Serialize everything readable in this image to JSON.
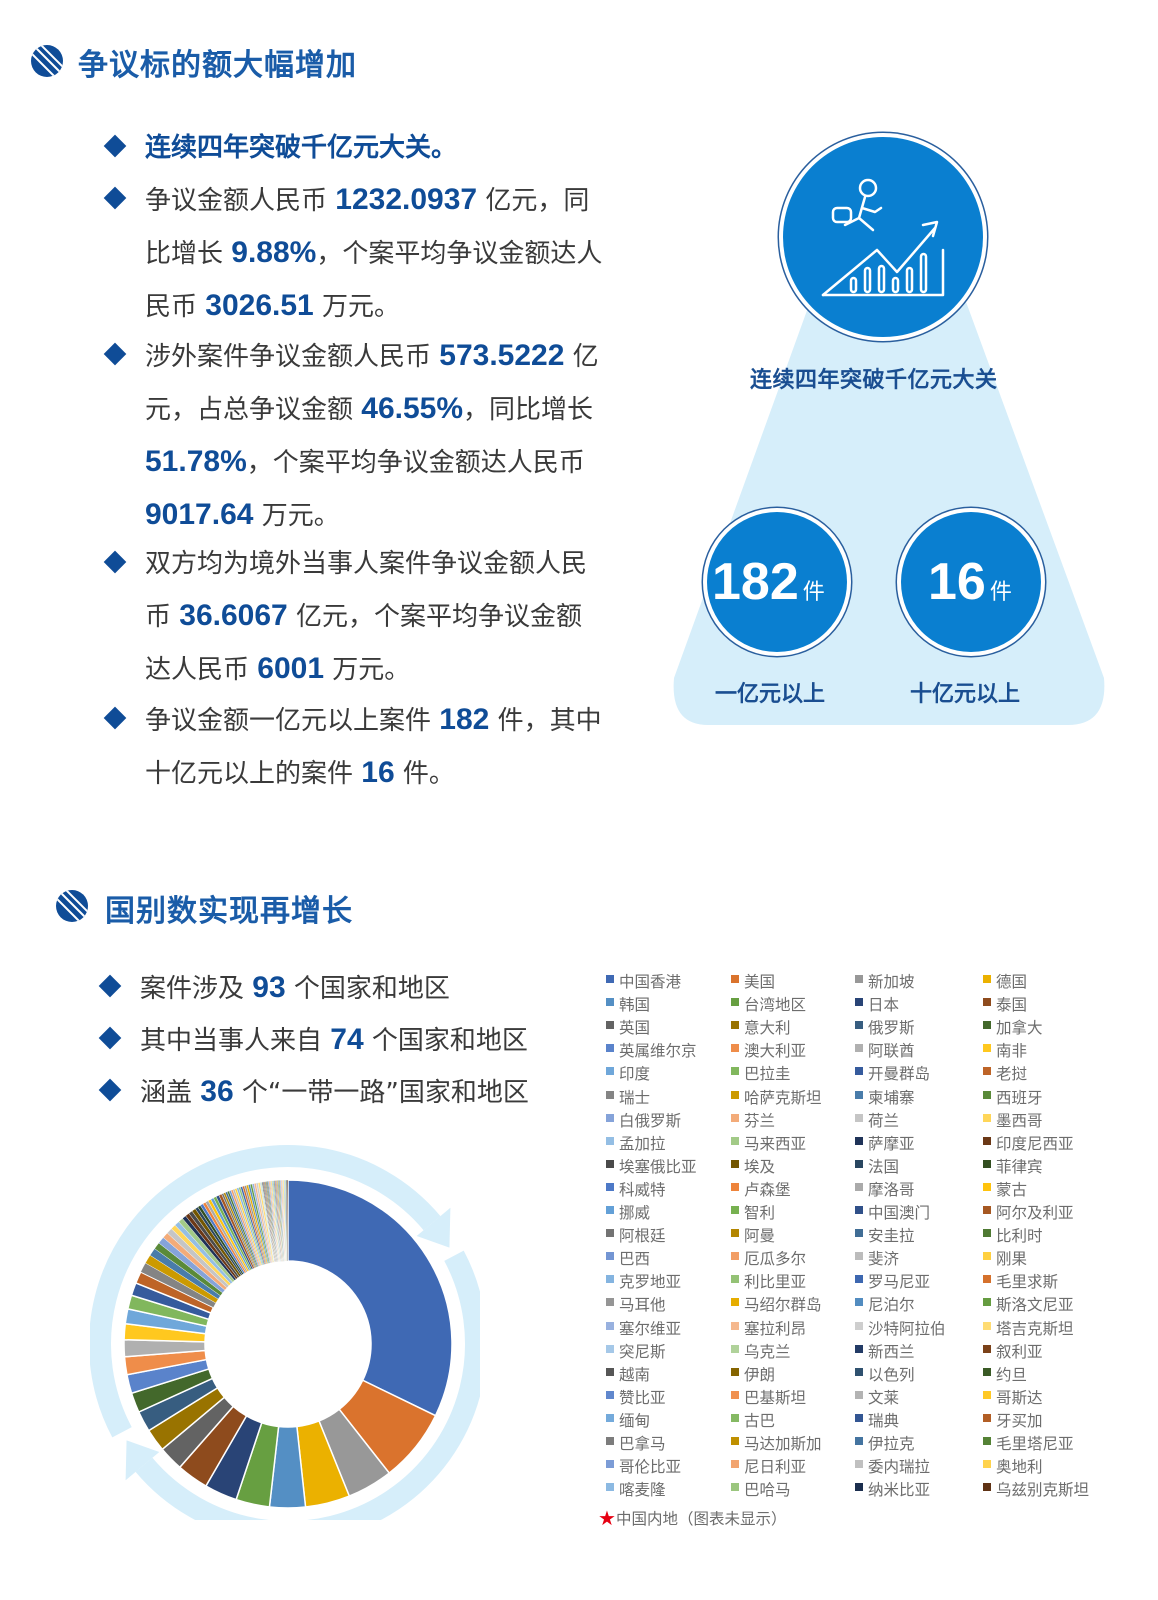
{
  "section1": {
    "title": "争议标的额大幅增加",
    "bullets": [
      {
        "highlight": true,
        "segments": [
          {
            "t": "连续四年突破千亿元大关。",
            "b": false
          }
        ]
      },
      {
        "segments": [
          {
            "t": "争议金额人民币 ",
            "b": false
          },
          {
            "t": "1232.0937",
            "b": true
          },
          {
            "t": " 亿元，同比增长 ",
            "b": false
          },
          {
            "t": "9.88%",
            "b": true
          },
          {
            "t": "，个案平均争议金额达人民币 ",
            "b": false
          },
          {
            "t": "3026.51",
            "b": true
          },
          {
            "t": " 万元。",
            "b": false
          }
        ]
      },
      {
        "segments": [
          {
            "t": "涉外案件争议金额人民币 ",
            "b": false
          },
          {
            "t": "573.5222",
            "b": true
          },
          {
            "t": " 亿元，占总争议金额 ",
            "b": false
          },
          {
            "t": "46.55%",
            "b": true
          },
          {
            "t": "，同比增长 ",
            "b": false
          },
          {
            "t": "51.78%",
            "b": true
          },
          {
            "t": "，个案平均争议金额达人民币 ",
            "b": false
          },
          {
            "t": "9017.64",
            "b": true
          },
          {
            "t": " 万元。",
            "b": false
          }
        ]
      },
      {
        "segments": [
          {
            "t": "双方均为境外当事人案件争议金额人民币 ",
            "b": false
          },
          {
            "t": "36.6067",
            "b": true
          },
          {
            "t": " 亿元，个案平均争议金额达人民币 ",
            "b": false
          },
          {
            "t": "6001",
            "b": true
          },
          {
            "t": " 万元。",
            "b": false
          }
        ]
      },
      {
        "segments": [
          {
            "t": "争议金额一亿元以上案件 ",
            "b": false
          },
          {
            "t": "182",
            "b": true
          },
          {
            "t": " 件，其中十亿元以上的案件 ",
            "b": false
          },
          {
            "t": "16",
            "b": true
          },
          {
            "t": " 件。",
            "b": false
          }
        ]
      }
    ],
    "infographic": {
      "icon": "growth-chart-runner-icon",
      "caption": "连续四年突破千亿元大关",
      "stats": [
        {
          "value": "182",
          "unit": "件",
          "label": "一亿元以上"
        },
        {
          "value": "16",
          "unit": "件",
          "label": "十亿元以上"
        }
      ]
    }
  },
  "section2": {
    "title": "国别数实现再增长",
    "bullets": [
      {
        "segments": [
          {
            "t": "案件涉及 ",
            "b": false
          },
          {
            "t": "93",
            "b": true
          },
          {
            "t": " 个国家和地区",
            "b": false
          }
        ]
      },
      {
        "segments": [
          {
            "t": "其中当事人来自 ",
            "b": false
          },
          {
            "t": "74",
            "b": true
          },
          {
            "t": " 个国家和地区",
            "b": false
          }
        ]
      },
      {
        "segments": [
          {
            "t": "涵盖 ",
            "b": false
          },
          {
            "t": "36",
            "b": true
          },
          {
            "t": " 个“一带一路”国家和地区",
            "b": false
          }
        ]
      }
    ],
    "footnote": "中国内地（图表未显示）"
  },
  "colors": {
    "accent": "#0f4c97",
    "title": "#1a5ca8",
    "circle": "#0a7fd0",
    "light_panel": "#d6eefa",
    "star": "#e60012",
    "palette_base": [
      "#4472c4",
      "#ed7d31",
      "#a5a5a5",
      "#ffc000",
      "#5b9bd5",
      "#70ad47"
    ]
  },
  "chart_data": {
    "type": "pie",
    "donut": true,
    "legend_placement": "right",
    "unit": "percent (estimated)",
    "categories": [
      "中国香港",
      "美国",
      "新加坡",
      "德国",
      "韩国",
      "台湾地区",
      "日本",
      "泰国",
      "英国",
      "意大利",
      "俄罗斯",
      "加拿大",
      "英属维尔京",
      "澳大利亚",
      "阿联酋",
      "南非",
      "印度",
      "巴拉圭",
      "开曼群岛",
      "老挝",
      "瑞士",
      "哈萨克斯坦",
      "柬埔寨",
      "西班牙",
      "白俄罗斯",
      "芬兰",
      "荷兰",
      "墨西哥",
      "孟加拉",
      "马来西亚",
      "萨摩亚",
      "印度尼西亚",
      "埃塞俄比亚",
      "埃及",
      "法国",
      "菲律宾",
      "科威特",
      "卢森堡",
      "摩洛哥",
      "蒙古",
      "挪威",
      "智利",
      "中国澳门",
      "阿尔及利亚",
      "阿根廷",
      "阿曼",
      "安圭拉",
      "比利时",
      "巴西",
      "厄瓜多尔",
      "斐济",
      "刚果",
      "克罗地亚",
      "利比里亚",
      "罗马尼亚",
      "毛里求斯",
      "马耳他",
      "马绍尔群岛",
      "尼泊尔",
      "斯洛文尼亚",
      "塞尔维亚",
      "塞拉利昂",
      "沙特阿拉伯",
      "塔吉克斯坦",
      "突尼斯",
      "乌克兰",
      "新西兰",
      "叙利亚",
      "越南",
      "伊朗",
      "以色列",
      "约旦",
      "赞比亚",
      "巴基斯坦",
      "文莱",
      "哥斯达",
      "缅甸",
      "古巴",
      "瑞典",
      "牙买加",
      "巴拿马",
      "马达加斯加",
      "伊拉克",
      "毛里塔尼亚",
      "哥伦比亚",
      "尼日利亚",
      "委内瑞拉",
      "奥地利",
      "喀麦隆",
      "巴哈马",
      "纳米比亚",
      "乌兹别克斯坦"
    ],
    "values": [
      33,
      7.4,
      4.6,
      4.5,
      3.6,
      3.4,
      3.3,
      3.2,
      2.5,
      2.3,
      2.1,
      2.0,
      1.9,
      1.8,
      1.7,
      1.6,
      1.5,
      1.4,
      1.3,
      1.2,
      1.0,
      0.9,
      0.8,
      0.7,
      0.7,
      0.6,
      0.6,
      0.5,
      0.5,
      0.5,
      0.4,
      0.4,
      0.4,
      0.4,
      0.3,
      0.3,
      0.3,
      0.3,
      0.3,
      0.3,
      0.3,
      0.3,
      0.3,
      0.3,
      0.2,
      0.2,
      0.2,
      0.2,
      0.2,
      0.2,
      0.2,
      0.2,
      0.2,
      0.2,
      0.2,
      0.2,
      0.2,
      0.2,
      0.2,
      0.2,
      0.2,
      0.2,
      0.2,
      0.2,
      0.1,
      0.1,
      0.1,
      0.1,
      0.1,
      0.1,
      0.1,
      0.1,
      0.1,
      0.1,
      0.1,
      0.1,
      0.1,
      0.1,
      0.1,
      0.1,
      0.1,
      0.1,
      0.1,
      0.1,
      0.1,
      0.1,
      0.1,
      0.1,
      0.1,
      0.1,
      0.1,
      0.1
    ]
  }
}
